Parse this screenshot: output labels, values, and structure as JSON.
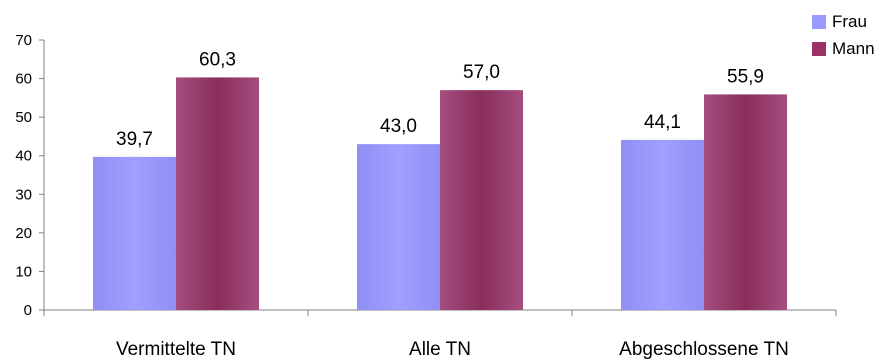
{
  "chart_data": {
    "type": "bar",
    "categories": [
      "Vermittelte TN",
      "Alle TN",
      "Abgeschlossene TN"
    ],
    "series": [
      {
        "name": "Frau",
        "values": [
          39.7,
          43.0,
          44.1
        ],
        "labels": [
          "39,7",
          "43,0",
          "44,1"
        ],
        "color": "#9999ff"
      },
      {
        "name": "Mann",
        "values": [
          60.3,
          57.0,
          55.9
        ],
        "labels": [
          "60,3",
          "57,0",
          "55,9"
        ],
        "color": "#993366"
      }
    ],
    "ylim": [
      0,
      70
    ],
    "yticks": [
      0,
      10,
      20,
      30,
      40,
      50,
      60,
      70
    ],
    "title": "",
    "xlabel": "",
    "ylabel": "",
    "grid": false,
    "legend": "top-right"
  }
}
